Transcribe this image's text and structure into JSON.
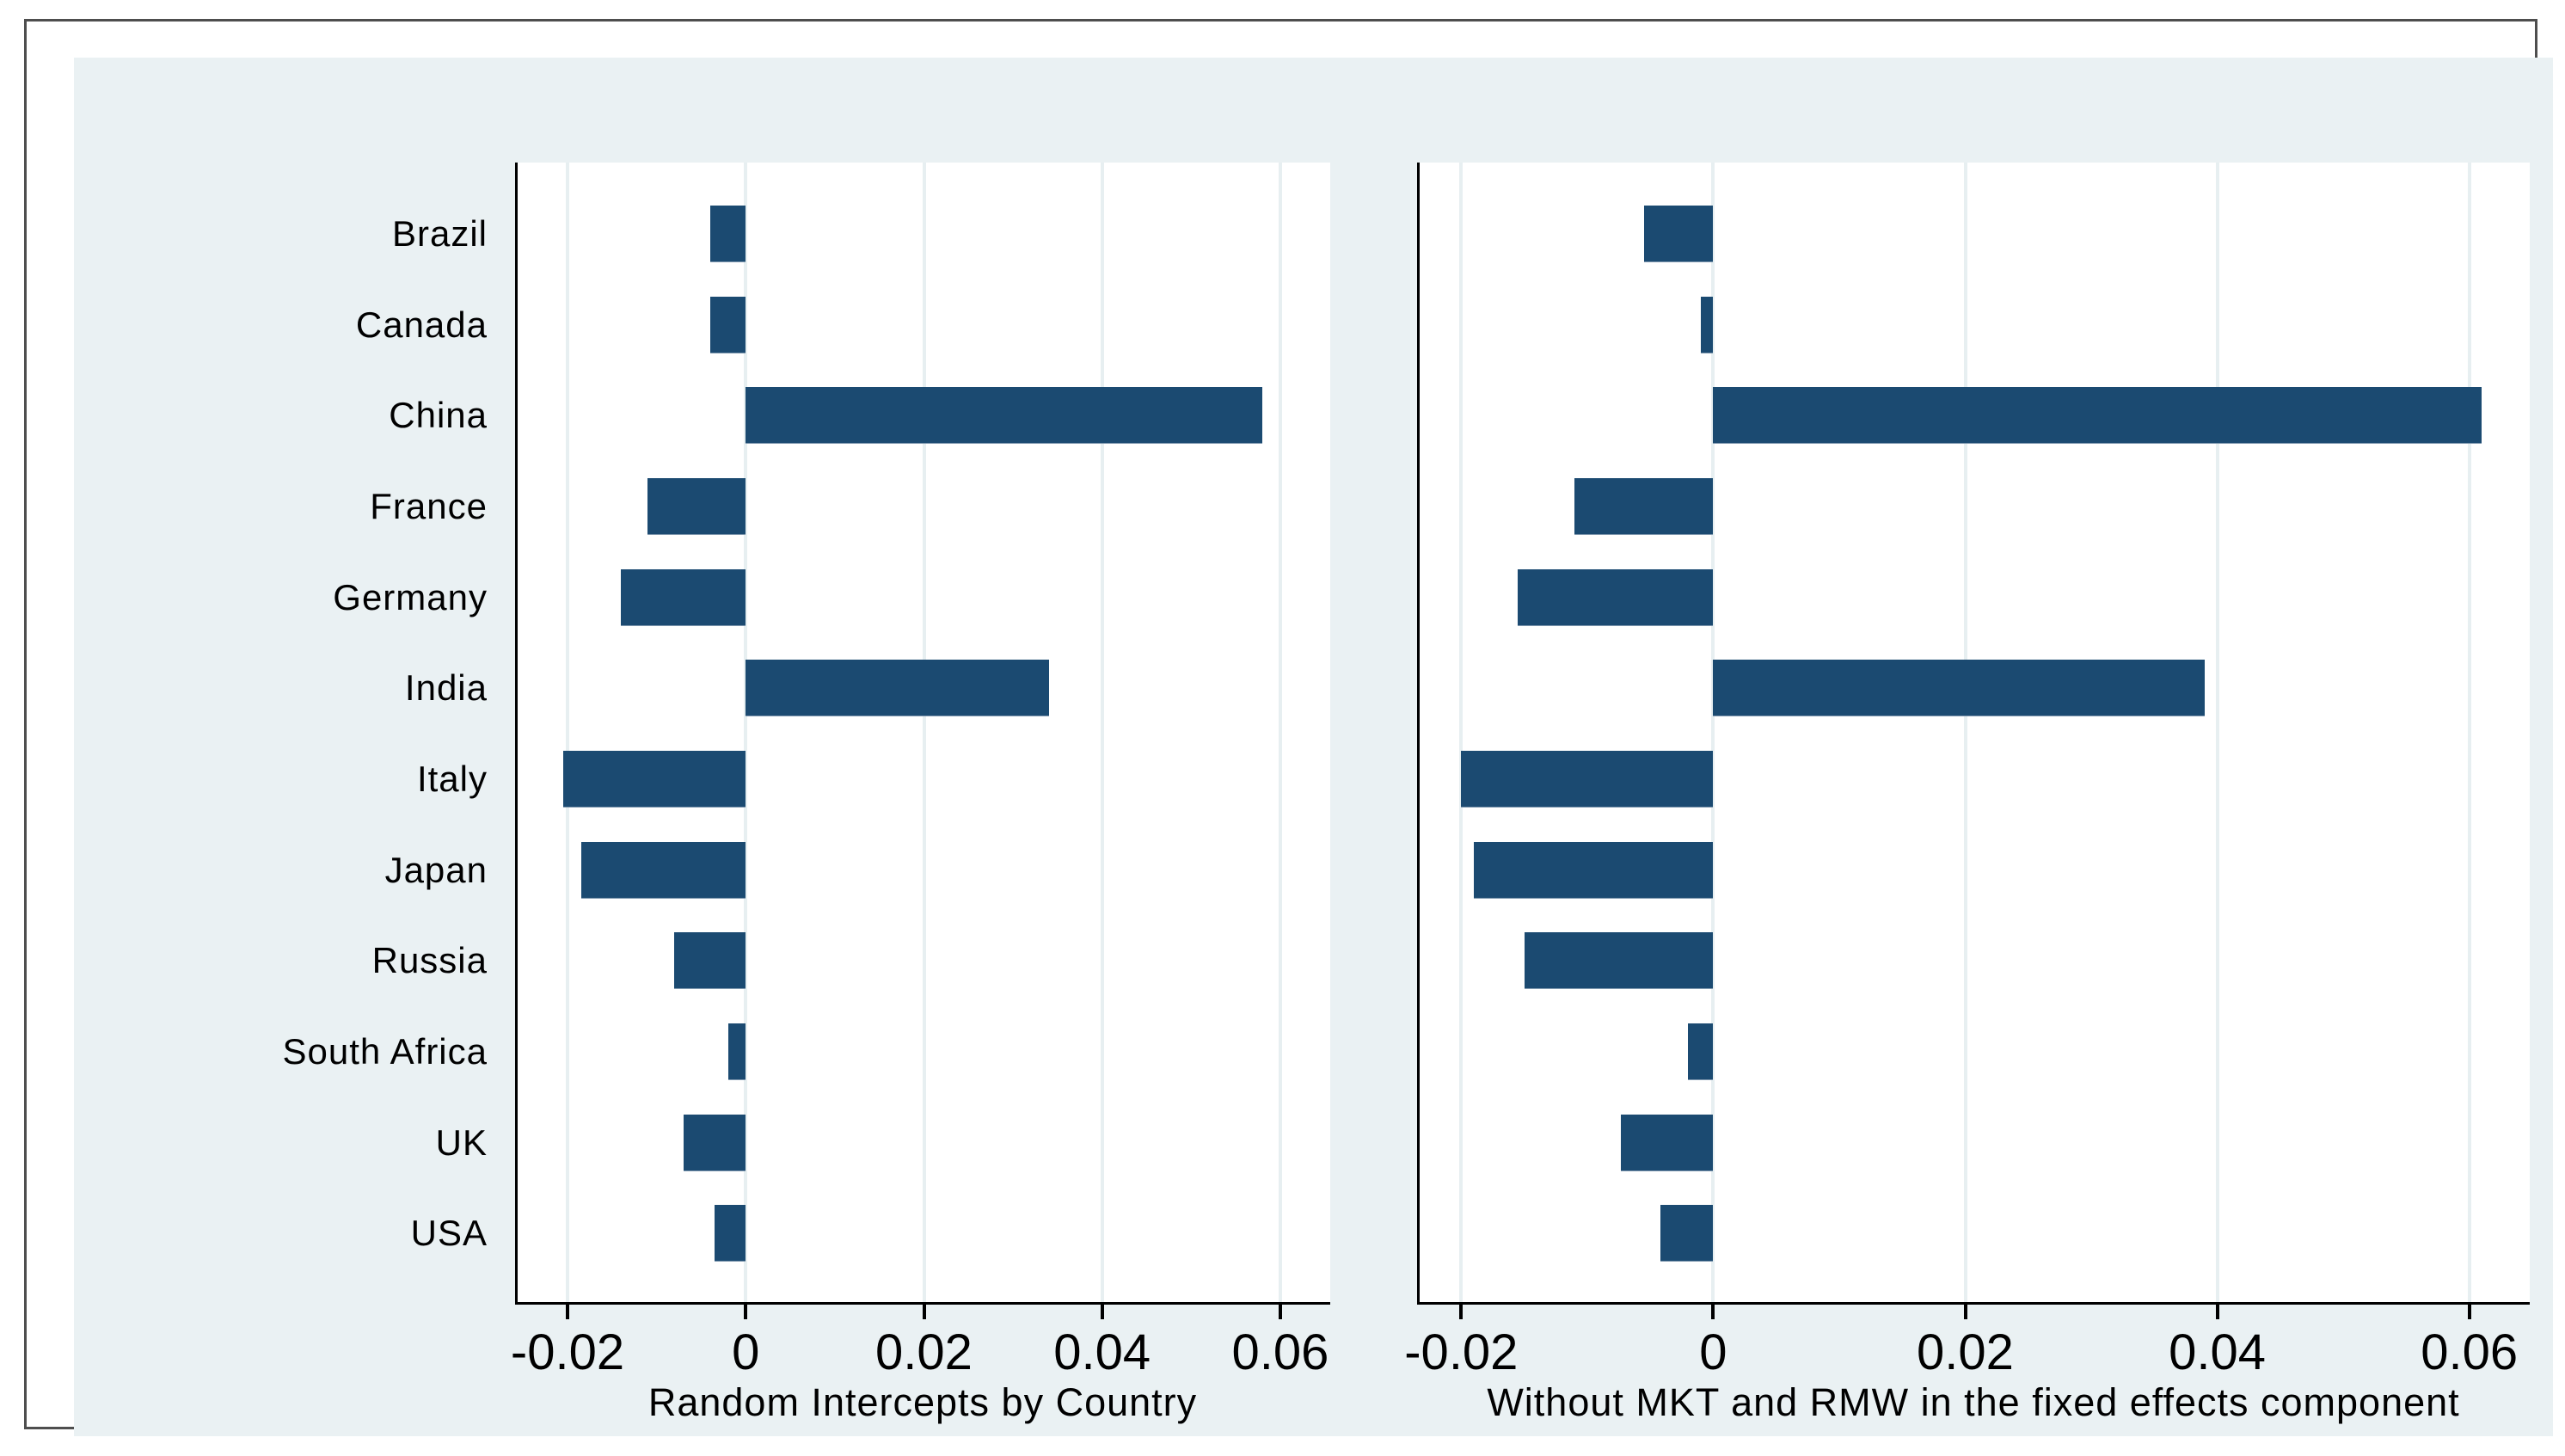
{
  "figure": {
    "frame_border_color": "#4e4e4e",
    "card_background_color": "#eaf1f3",
    "plot_background_color": "#ffffff",
    "bar_color": "#1b4a71",
    "gridline_color": "#e7eff1",
    "axis_color": "#000000",
    "text_color": "#000000"
  },
  "chart_data": [
    {
      "type": "bar",
      "orientation": "horizontal",
      "title": "Random Intercepts by Country",
      "categories": [
        "Brazil",
        "Canada",
        "China",
        "France",
        "Germany",
        "India",
        "Italy",
        "Japan",
        "Russia",
        "South Africa",
        "UK",
        "USA"
      ],
      "values": [
        -0.004,
        -0.004,
        0.058,
        -0.011,
        -0.014,
        0.034,
        -0.0205,
        -0.0185,
        -0.008,
        -0.002,
        -0.007,
        -0.0035
      ],
      "xlim": [
        -0.0256,
        0.0656
      ],
      "xticks": [
        -0.02,
        0,
        0.02,
        0.04,
        0.06
      ],
      "xtick_labels": [
        "-0.02",
        "0",
        "0.02",
        "0.04",
        "0.06"
      ],
      "grid": true,
      "show_category_labels": true,
      "legend": "none"
    },
    {
      "type": "bar",
      "orientation": "horizontal",
      "title": "Without MKT and RMW in the fixed effects component",
      "categories": [
        "Brazil",
        "Canada",
        "China",
        "France",
        "Germany",
        "India",
        "Italy",
        "Japan",
        "Russia",
        "South Africa",
        "UK",
        "USA"
      ],
      "values": [
        -0.0055,
        -0.001,
        0.061,
        -0.011,
        -0.0155,
        0.039,
        -0.02,
        -0.019,
        -0.015,
        -0.002,
        -0.0073,
        -0.0042
      ],
      "xlim": [
        -0.0233,
        0.0648
      ],
      "xticks": [
        -0.02,
        0,
        0.02,
        0.04,
        0.06
      ],
      "xtick_labels": [
        "-0.02",
        "0",
        "0.02",
        "0.04",
        "0.06"
      ],
      "grid": true,
      "show_category_labels": false,
      "legend": "none"
    }
  ]
}
